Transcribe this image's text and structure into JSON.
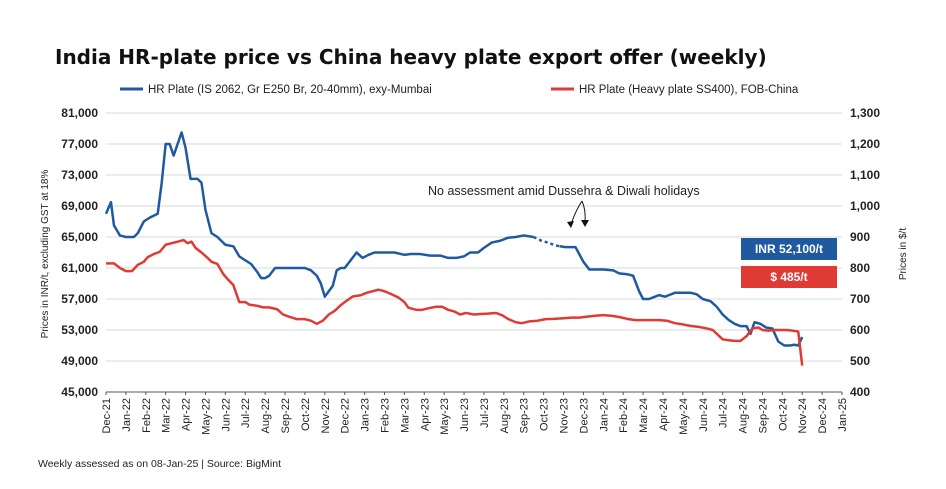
{
  "chart_data": {
    "type": "line",
    "title": "India HR-plate price vs China heavy plate export offer (weekly)",
    "ylabel_left": "Prices in INR/t, excluding GST at 18%",
    "ylabel_right": "Prices in $/t",
    "y_left": {
      "min": 45000,
      "max": 81000,
      "ticks": [
        "45,000",
        "49,000",
        "53,000",
        "57,000",
        "61,000",
        "65,000",
        "69,000",
        "73,000",
        "77,000",
        "81,000"
      ]
    },
    "y_right": {
      "min": 400,
      "max": 1300,
      "ticks": [
        "400",
        "500",
        "600",
        "700",
        "800",
        "900",
        "1,000",
        "1,100",
        "1,200",
        "1,300"
      ]
    },
    "x_ticks": [
      "Dec-21",
      "Jan-22",
      "Feb-22",
      "Mar-22",
      "Apr-22",
      "May-22",
      "Jun-22",
      "Jul-22",
      "Aug-22",
      "Sep-22",
      "Oct-22",
      "Nov-22",
      "Dec-22",
      "Jan-23",
      "Feb-23",
      "Mar-23",
      "Apr-23",
      "May-23",
      "Jun-23",
      "Jul-23",
      "Aug-23",
      "Sep-23",
      "Oct-23",
      "Nov-23",
      "Dec-23",
      "Jan-24",
      "Feb-24",
      "Mar-24",
      "Apr-24",
      "May-24",
      "Jun-24",
      "Jul-24",
      "Aug-24",
      "Sep-24",
      "Oct-24",
      "Nov-24",
      "Dec-24",
      "Jan-25"
    ],
    "grid": true,
    "legend_position": "top",
    "series": [
      {
        "name": "HR Plate (IS 2062, Gr E250 Br, 20-40mm), exy-Mumbai",
        "axis": "left",
        "color": "#1f5aa0",
        "points": [
          [
            0.0,
            68000
          ],
          [
            0.25,
            69500
          ],
          [
            0.4,
            66500
          ],
          [
            0.7,
            65200
          ],
          [
            1.0,
            65000
          ],
          [
            1.4,
            65000
          ],
          [
            1.6,
            65500
          ],
          [
            1.9,
            67000
          ],
          [
            2.2,
            67500
          ],
          [
            2.6,
            68000
          ],
          [
            2.8,
            72000
          ],
          [
            3.0,
            77000
          ],
          [
            3.2,
            77000
          ],
          [
            3.4,
            75500
          ],
          [
            3.6,
            77000
          ],
          [
            3.8,
            78500
          ],
          [
            4.0,
            76500
          ],
          [
            4.25,
            72500
          ],
          [
            4.6,
            72500
          ],
          [
            4.8,
            72000
          ],
          [
            5.0,
            68500
          ],
          [
            5.3,
            65500
          ],
          [
            5.6,
            65000
          ],
          [
            6.0,
            64000
          ],
          [
            6.4,
            63800
          ],
          [
            6.7,
            62500
          ],
          [
            7.0,
            62000
          ],
          [
            7.3,
            61500
          ],
          [
            7.6,
            60500
          ],
          [
            7.8,
            59700
          ],
          [
            8.0,
            59700
          ],
          [
            8.2,
            60000
          ],
          [
            8.5,
            61000
          ],
          [
            9.0,
            61000
          ],
          [
            9.5,
            61000
          ],
          [
            10.0,
            61000
          ],
          [
            10.3,
            60700
          ],
          [
            10.6,
            60000
          ],
          [
            10.8,
            59000
          ],
          [
            11.0,
            57300
          ],
          [
            11.2,
            58000
          ],
          [
            11.4,
            58700
          ],
          [
            11.6,
            60700
          ],
          [
            11.8,
            61000
          ],
          [
            12.0,
            61000
          ],
          [
            12.3,
            62000
          ],
          [
            12.6,
            63000
          ],
          [
            12.9,
            62300
          ],
          [
            13.2,
            62700
          ],
          [
            13.5,
            63000
          ],
          [
            14.0,
            63000
          ],
          [
            14.5,
            63000
          ],
          [
            15.0,
            62700
          ],
          [
            15.3,
            62800
          ],
          [
            15.8,
            62800
          ],
          [
            16.3,
            62600
          ],
          [
            16.8,
            62600
          ],
          [
            17.2,
            62300
          ],
          [
            17.6,
            62300
          ],
          [
            18.0,
            62500
          ],
          [
            18.3,
            63000
          ],
          [
            18.7,
            63000
          ],
          [
            19.0,
            63600
          ],
          [
            19.4,
            64300
          ],
          [
            19.8,
            64500
          ],
          [
            20.2,
            64900
          ],
          [
            20.6,
            65000
          ],
          [
            21.0,
            65200
          ],
          [
            21.5,
            65000
          ],
          [
            21.9,
            64500
          ],
          [
            22.2,
            64300
          ],
          [
            22.5,
            64000
          ],
          [
            22.8,
            63800
          ],
          [
            23.1,
            63700
          ],
          [
            23.6,
            63700
          ],
          [
            24.0,
            61800
          ],
          [
            24.3,
            60800
          ],
          [
            24.6,
            60800
          ],
          [
            25.0,
            60800
          ],
          [
            25.5,
            60700
          ],
          [
            25.8,
            60300
          ],
          [
            26.2,
            60200
          ],
          [
            26.5,
            60000
          ],
          [
            26.8,
            58000
          ],
          [
            27.0,
            57000
          ],
          [
            27.3,
            57000
          ],
          [
            27.6,
            57300
          ],
          [
            27.8,
            57500
          ],
          [
            28.1,
            57300
          ],
          [
            28.3,
            57500
          ],
          [
            28.6,
            57800
          ],
          [
            29.0,
            57800
          ],
          [
            29.4,
            57800
          ],
          [
            29.7,
            57600
          ],
          [
            30.0,
            57000
          ],
          [
            30.4,
            56700
          ],
          [
            30.7,
            56000
          ],
          [
            31.0,
            55000
          ],
          [
            31.3,
            54300
          ],
          [
            31.6,
            53800
          ],
          [
            31.9,
            53500
          ],
          [
            32.2,
            53500
          ],
          [
            32.4,
            52500
          ],
          [
            32.6,
            54000
          ],
          [
            32.9,
            53800
          ],
          [
            33.2,
            53300
          ],
          [
            33.5,
            53200
          ],
          [
            33.8,
            51500
          ],
          [
            34.1,
            51000
          ],
          [
            34.4,
            51000
          ],
          [
            34.6,
            51100
          ],
          [
            34.8,
            51000
          ],
          [
            35.0,
            52100
          ]
        ]
      },
      {
        "name": "HR Plate (Heavy plate SS400), FOB-China",
        "axis": "right",
        "color": "#e03a35",
        "points": [
          [
            0.0,
            815
          ],
          [
            0.4,
            815
          ],
          [
            0.7,
            800
          ],
          [
            1.0,
            790
          ],
          [
            1.3,
            790
          ],
          [
            1.6,
            810
          ],
          [
            1.9,
            820
          ],
          [
            2.1,
            835
          ],
          [
            2.4,
            845
          ],
          [
            2.7,
            852
          ],
          [
            3.0,
            875
          ],
          [
            3.3,
            880
          ],
          [
            3.6,
            885
          ],
          [
            3.9,
            890
          ],
          [
            4.1,
            880
          ],
          [
            4.3,
            885
          ],
          [
            4.5,
            865
          ],
          [
            4.8,
            850
          ],
          [
            5.1,
            833
          ],
          [
            5.3,
            820
          ],
          [
            5.6,
            813
          ],
          [
            5.9,
            780
          ],
          [
            6.1,
            765
          ],
          [
            6.4,
            745
          ],
          [
            6.7,
            690
          ],
          [
            7.0,
            690
          ],
          [
            7.2,
            682
          ],
          [
            7.6,
            678
          ],
          [
            7.9,
            673
          ],
          [
            8.2,
            673
          ],
          [
            8.6,
            667
          ],
          [
            8.9,
            650
          ],
          [
            9.2,
            643
          ],
          [
            9.6,
            635
          ],
          [
            10.0,
            635
          ],
          [
            10.3,
            630
          ],
          [
            10.6,
            620
          ],
          [
            10.9,
            630
          ],
          [
            11.2,
            650
          ],
          [
            11.5,
            662
          ],
          [
            11.8,
            680
          ],
          [
            12.0,
            690
          ],
          [
            12.4,
            708
          ],
          [
            12.8,
            712
          ],
          [
            13.1,
            720
          ],
          [
            13.4,
            725
          ],
          [
            13.7,
            730
          ],
          [
            14.0,
            725
          ],
          [
            14.3,
            717
          ],
          [
            14.7,
            705
          ],
          [
            15.0,
            690
          ],
          [
            15.2,
            672
          ],
          [
            15.6,
            665
          ],
          [
            15.9,
            665
          ],
          [
            16.2,
            670
          ],
          [
            16.6,
            675
          ],
          [
            16.9,
            675
          ],
          [
            17.2,
            665
          ],
          [
            17.5,
            660
          ],
          [
            17.8,
            650
          ],
          [
            18.1,
            655
          ],
          [
            18.5,
            650
          ],
          [
            18.9,
            652
          ],
          [
            19.2,
            653
          ],
          [
            19.6,
            655
          ],
          [
            19.9,
            648
          ],
          [
            20.2,
            636
          ],
          [
            20.6,
            625
          ],
          [
            20.9,
            622
          ],
          [
            21.3,
            628
          ],
          [
            21.7,
            630
          ],
          [
            22.1,
            635
          ],
          [
            22.5,
            636
          ],
          [
            23.0,
            638
          ],
          [
            23.4,
            640
          ],
          [
            23.8,
            640
          ],
          [
            24.2,
            643
          ],
          [
            24.6,
            646
          ],
          [
            25.0,
            648
          ],
          [
            25.4,
            646
          ],
          [
            25.8,
            642
          ],
          [
            26.2,
            636
          ],
          [
            26.6,
            632
          ],
          [
            27.0,
            632
          ],
          [
            27.4,
            632
          ],
          [
            27.8,
            632
          ],
          [
            28.2,
            630
          ],
          [
            28.6,
            622
          ],
          [
            29.0,
            618
          ],
          [
            29.4,
            613
          ],
          [
            29.8,
            610
          ],
          [
            30.2,
            605
          ],
          [
            30.5,
            600
          ],
          [
            30.8,
            582
          ],
          [
            31.0,
            570
          ],
          [
            31.3,
            567
          ],
          [
            31.6,
            565
          ],
          [
            31.9,
            565
          ],
          [
            32.2,
            580
          ],
          [
            32.5,
            605
          ],
          [
            32.8,
            608
          ],
          [
            33.0,
            600
          ],
          [
            33.3,
            598
          ],
          [
            33.6,
            600
          ],
          [
            33.9,
            600
          ],
          [
            34.2,
            600
          ],
          [
            34.5,
            598
          ],
          [
            34.8,
            595
          ],
          [
            35.0,
            485
          ]
        ]
      }
    ],
    "gap_annotation": "No assessment amid Dussehra & Diwali holidays",
    "callouts": [
      {
        "text": "INR 52,100/t",
        "color": "#1f5aa0"
      },
      {
        "text": "$ 485/t",
        "color": "#e03a35"
      }
    ]
  },
  "footer": "Weekly assessed as on 08-Jan-25 |  Source: BigMint"
}
